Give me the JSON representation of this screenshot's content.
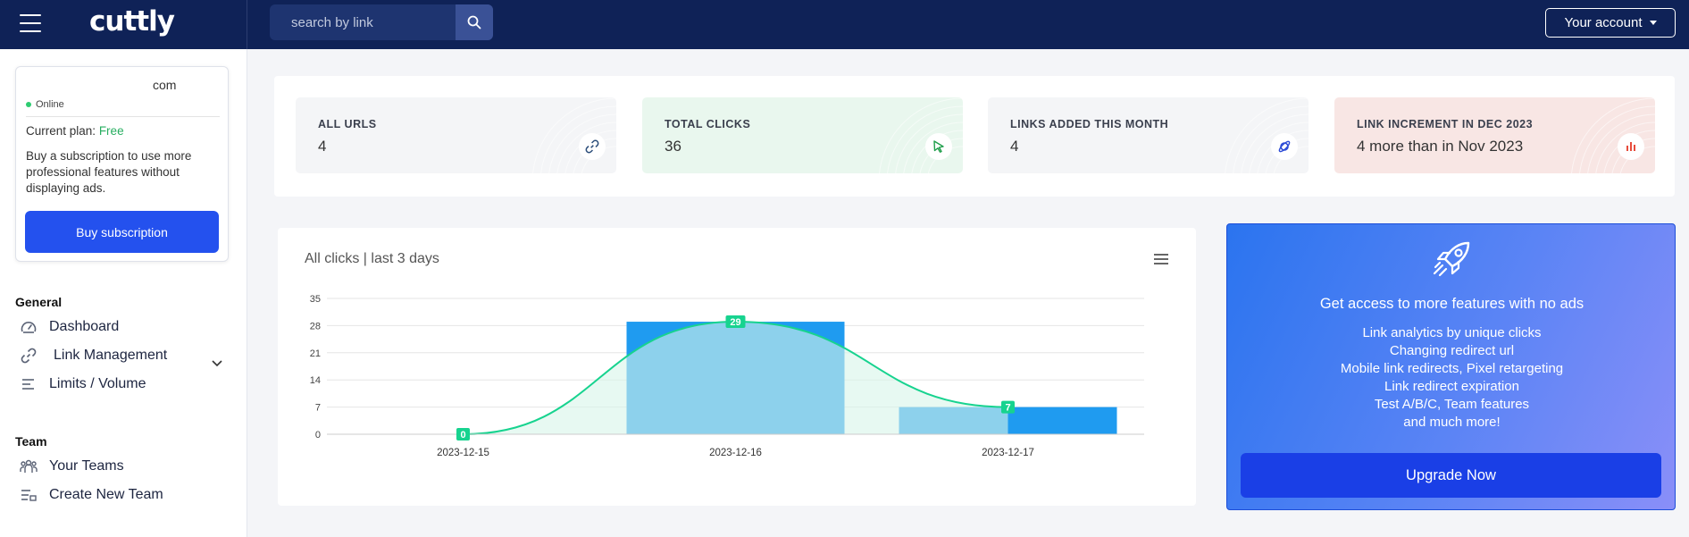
{
  "topbar": {
    "logo": "cuttly",
    "search_placeholder": "search by link",
    "account_label": "Your account"
  },
  "sidebar": {
    "user": {
      "email": "com",
      "status": "Online",
      "plan_label": "Current plan:",
      "plan_value": "Free",
      "promo": "Buy a subscription to use more professional features without displaying ads.",
      "buy_button": "Buy subscription"
    },
    "sections": [
      {
        "title": "General",
        "items": [
          {
            "label": "Dashboard",
            "icon": "gauge-icon"
          },
          {
            "label": "Link Management",
            "icon": "link-icon"
          },
          {
            "label": "Limits / Volume",
            "icon": "lines-icon"
          }
        ]
      },
      {
        "title": "Team",
        "items": [
          {
            "label": "Your Teams",
            "icon": "team-icon"
          },
          {
            "label": "Create New Team",
            "icon": "list-add-icon"
          }
        ]
      }
    ]
  },
  "stats": [
    {
      "label": "ALL URLS",
      "value": "4",
      "icon": "link-icon",
      "bg": "#f4f5f7",
      "accent": "#2b4d7a"
    },
    {
      "label": "TOTAL CLICKS",
      "value": "36",
      "icon": "cursor-icon",
      "bg": "#e9f7ee",
      "accent": "#1e9e4a"
    },
    {
      "label": "LINKS ADDED THIS MONTH",
      "value": "4",
      "icon": "planet-icon",
      "bg": "#f4f5f7",
      "accent": "#2c4bd6"
    },
    {
      "label": "LINK INCREMENT IN DEC 2023",
      "value": "4 more than in Nov 2023",
      "icon": "bar-chart-icon",
      "bg": "#f8e6e4",
      "accent": "#e74c3c"
    }
  ],
  "chart_title": "All clicks | last 3 days",
  "chart_data": {
    "type": "bar",
    "categories": [
      "2023-12-15",
      "2023-12-16",
      "2023-12-17"
    ],
    "values": [
      0,
      29,
      7
    ],
    "data_labels": [
      "0",
      "29",
      "7"
    ],
    "overlay": "area",
    "y_ticks": [
      "0",
      "7",
      "14",
      "21",
      "28",
      "35"
    ],
    "ylim": [
      0,
      35
    ],
    "grid": true,
    "colors": {
      "bar": "#1f9bf0",
      "line": "#17d38f",
      "area": "#d7f5e9"
    }
  },
  "upgrade": {
    "icon": "rocket-icon",
    "headline": "Get access to more features with no ads",
    "features": [
      "Link analytics by unique clicks",
      "Changing redirect url",
      "Mobile link redirects, Pixel retargeting",
      "Link redirect expiration",
      "Test A/B/C, Team features",
      "and much more!"
    ],
    "button": "Upgrade Now"
  }
}
